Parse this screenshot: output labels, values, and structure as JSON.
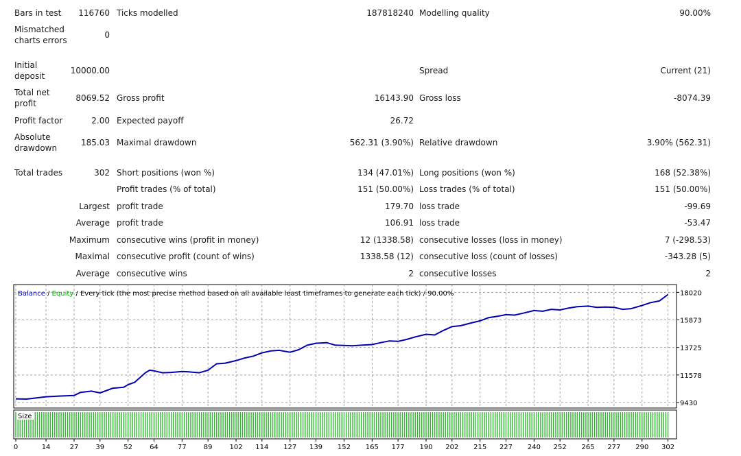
{
  "report": {
    "bars_label": "Bars in test",
    "bars_value": "116760",
    "ticks_label": "Ticks modelled",
    "ticks_value": "187818240",
    "quality_label": "Modelling quality",
    "quality_value": "90.00%",
    "mismatch_label_1": "Mismatched",
    "mismatch_label_2": "charts errors",
    "mismatch_value": "0",
    "deposit_label_1": "Initial",
    "deposit_label_2": "deposit",
    "deposit_value": "10000.00",
    "spread_label": "Spread",
    "spread_value": "Current (21)",
    "net_label_1": "Total net",
    "net_label_2": "profit",
    "net_value": "8069.52",
    "gross_profit_label": "Gross profit",
    "gross_profit_value": "16143.90",
    "gross_loss_label": "Gross loss",
    "gross_loss_value": "-8074.39",
    "pf_label": "Profit factor",
    "pf_value": "2.00",
    "payoff_label": "Expected payoff",
    "payoff_value": "26.72",
    "abs_dd_label_1": "Absolute",
    "abs_dd_label_2": "drawdown",
    "abs_dd_value": "185.03",
    "max_dd_label": "Maximal drawdown",
    "max_dd_value": "562.31 (3.90%)",
    "rel_dd_label": "Relative drawdown",
    "rel_dd_value": "3.90% (562.31)",
    "trades_label": "Total trades",
    "trades_value": "302",
    "short_label": "Short positions (won %)",
    "short_value": "134 (47.01%)",
    "long_label": "Long positions (won %)",
    "long_value": "168 (52.38%)",
    "profit_trades_label": "Profit trades (% of total)",
    "profit_trades_value": "151 (50.00%)",
    "loss_trades_label": "Loss trades (% of total)",
    "loss_trades_value": "151 (50.00%)",
    "largest_label": "Largest",
    "largest_profit_label": "profit trade",
    "largest_profit_value": "179.70",
    "largest_loss_label": "loss trade",
    "largest_loss_value": "-99.69",
    "average_label": "Average",
    "average_profit_label": "profit trade",
    "average_profit_value": "106.91",
    "average_loss_label": "loss trade",
    "average_loss_value": "-53.47",
    "maximum_label": "Maximum",
    "cons_wins_label": "consecutive wins (profit in money)",
    "cons_wins_value": "12 (1338.58)",
    "cons_losses_label": "consecutive losses (loss in money)",
    "cons_losses_value": "7 (-298.53)",
    "maximal_label": "Maximal",
    "cons_profit_label": "consecutive profit (count of wins)",
    "cons_profit_value": "1338.58 (12)",
    "cons_loss_label": "consecutive loss (count of losses)",
    "cons_loss_value": "-343.28 (5)",
    "average2_label": "Average",
    "avg_cons_wins_label": "consecutive wins",
    "avg_cons_wins_value": "2",
    "avg_cons_losses_label": "consecutive losses",
    "avg_cons_losses_value": "2"
  },
  "chart_header": {
    "balance": "Balance",
    "sep1": " / ",
    "equity": "Equity",
    "rest": " / Every tick (the most precise method based on all available least timeframes to generate each tick) / 90.00%"
  },
  "size_label": "Size",
  "colors": {
    "balance": "#0000b0",
    "equity": "#00aa00",
    "size_bar": "#2eb82e",
    "grid": "#a0a0a0"
  },
  "chart_data": {
    "type": "line",
    "title": "",
    "xlabel": "",
    "ylabel": "",
    "ylim": [
      9430,
      18200
    ],
    "xlim": [
      0,
      305
    ],
    "y_ticks": [
      9430,
      11578,
      13725,
      15873,
      18020
    ],
    "x_ticks": [
      0,
      14,
      27,
      39,
      52,
      64,
      77,
      89,
      102,
      114,
      127,
      139,
      152,
      165,
      177,
      190,
      202,
      215,
      227,
      240,
      252,
      265,
      277,
      290,
      302
    ],
    "series": [
      {
        "name": "Balance",
        "x": [
          0,
          5,
          10,
          14,
          20,
          27,
          30,
          35,
          39,
          45,
          50,
          52,
          55,
          58,
          60,
          62,
          64,
          68,
          72,
          77,
          80,
          85,
          89,
          93,
          97,
          102,
          106,
          110,
          114,
          118,
          122,
          127,
          131,
          135,
          139,
          144,
          148,
          152,
          156,
          160,
          165,
          169,
          173,
          177,
          181,
          185,
          190,
          194,
          198,
          202,
          206,
          210,
          215,
          219,
          223,
          227,
          231,
          235,
          240,
          244,
          248,
          252,
          256,
          260,
          265,
          269,
          273,
          277,
          281,
          285,
          290,
          294,
          298,
          302
        ],
        "y": [
          9720,
          9700,
          9800,
          9880,
          9930,
          9980,
          10220,
          10320,
          10180,
          10550,
          10620,
          10820,
          11000,
          11450,
          11750,
          11950,
          11900,
          11750,
          11780,
          11850,
          11820,
          11750,
          11950,
          12450,
          12500,
          12700,
          12900,
          13050,
          13300,
          13450,
          13500,
          13350,
          13550,
          13900,
          14050,
          14100,
          13900,
          13880,
          13850,
          13900,
          13950,
          14100,
          14230,
          14200,
          14350,
          14550,
          14750,
          14700,
          15050,
          15350,
          15420,
          15600,
          15800,
          16050,
          16150,
          16280,
          16250,
          16400,
          16600,
          16550,
          16700,
          16650,
          16800,
          16900,
          16950,
          16850,
          16880,
          16850,
          16700,
          16750,
          17000,
          17220,
          17350,
          17850
        ]
      }
    ]
  }
}
